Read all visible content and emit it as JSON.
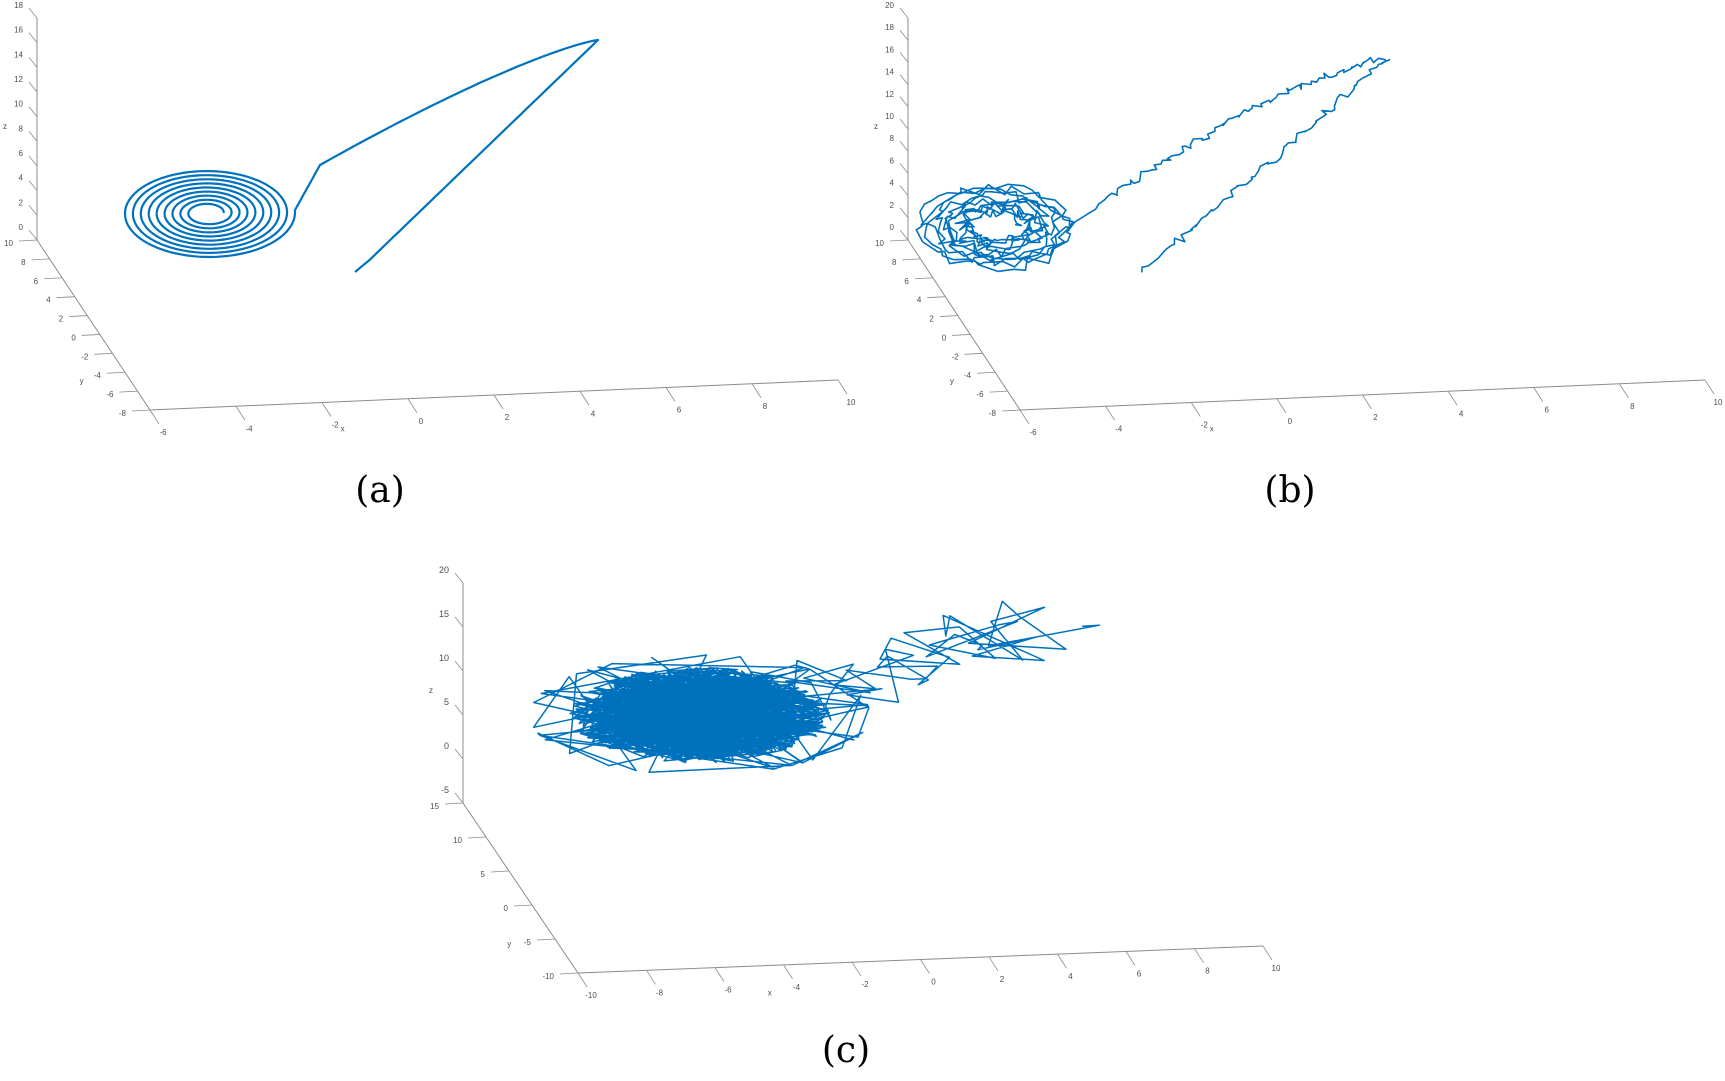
{
  "line_color": "#0072BD",
  "axis_color": "#8c8c8c",
  "captions": {
    "a": "(a)",
    "b": "(b)",
    "c": "(c)"
  },
  "chart_data": [
    {
      "id": "a",
      "type": "line",
      "projection": "3d",
      "title": "",
      "caption": "(a)",
      "xlabel": "x",
      "ylabel": "y",
      "zlabel": "z",
      "xlim": [
        -6,
        10
      ],
      "ylim": [
        -8,
        10
      ],
      "zlim": [
        0,
        18
      ],
      "xticks": [
        "-6",
        "-4",
        "-2",
        "0",
        "2",
        "4",
        "6",
        "8",
        "10"
      ],
      "yticks": [
        "-8",
        "-6",
        "-4",
        "-2",
        "0",
        "2",
        "4",
        "6",
        "8",
        "10"
      ],
      "zticks": [
        "0",
        "2",
        "4",
        "6",
        "8",
        "10",
        "12",
        "14",
        "16",
        "18"
      ],
      "grid": false,
      "description": "Smooth deterministic trajectory: starts near x≈0, low z, rises linearly to peak near x≈6, z≈18, then returns and spirals inward to a stable focus near x≈-4, y≈0, z≈0",
      "series": [
        {
          "name": "trajectory",
          "noise": "none"
        }
      ]
    },
    {
      "id": "b",
      "type": "line",
      "projection": "3d",
      "title": "",
      "caption": "(b)",
      "xlabel": "x",
      "ylabel": "y",
      "zlabel": "z",
      "xlim": [
        -6,
        10
      ],
      "ylim": [
        -8,
        10
      ],
      "zlim": [
        0,
        20
      ],
      "xticks": [
        "-6",
        "-4",
        "-2",
        "0",
        "2",
        "4",
        "6",
        "8",
        "10"
      ],
      "yticks": [
        "-8",
        "-6",
        "-4",
        "-2",
        "0",
        "2",
        "4",
        "6",
        "8",
        "10"
      ],
      "zticks": [
        "0",
        "2",
        "4",
        "6",
        "8",
        "10",
        "12",
        "14",
        "16",
        "18",
        "20"
      ],
      "grid": false,
      "description": "Same trajectory with small stochastic noise: jagged rise to peak near x≈6, z≈18, then noisy spiral around focus near x≈-4, y≈0, z≈0",
      "series": [
        {
          "name": "trajectory",
          "noise": "low"
        }
      ]
    },
    {
      "id": "c",
      "type": "line",
      "projection": "3d",
      "title": "",
      "caption": "(c)",
      "xlabel": "x",
      "ylabel": "y",
      "zlabel": "z",
      "xlim": [
        -10,
        10
      ],
      "ylim": [
        -10,
        15
      ],
      "zlim": [
        -5,
        20
      ],
      "xticks": [
        "-10",
        "-8",
        "-6",
        "-4",
        "-2",
        "0",
        "2",
        "4",
        "6",
        "8",
        "10"
      ],
      "yticks": [
        "-10",
        "-5",
        "0",
        "5",
        "10",
        "15"
      ],
      "zticks": [
        "-5",
        "0",
        "5",
        "10",
        "15",
        "20"
      ],
      "grid": false,
      "description": "Trajectory with strong noise: large zigzags from upper right (x≈8, z≈10) descending to a dense cloud centred near x≈-4, y≈0, z≈-3",
      "series": [
        {
          "name": "trajectory",
          "noise": "high"
        }
      ]
    }
  ]
}
